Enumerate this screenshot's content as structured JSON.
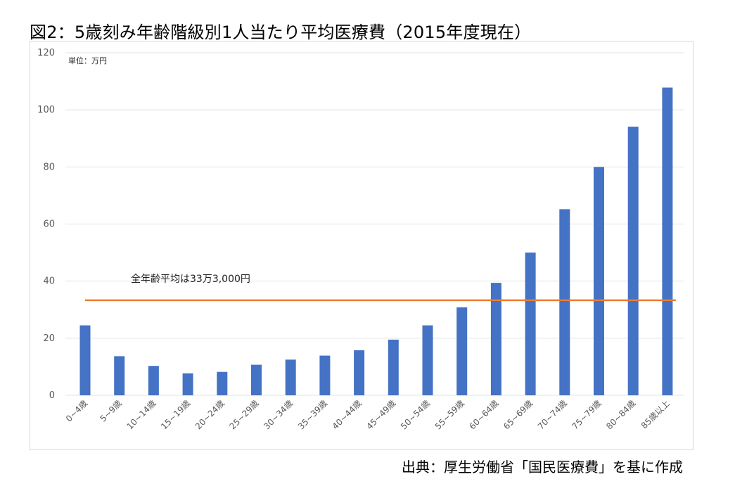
{
  "title": "図2：5歳刻み年齢階級別1人当たり平均医療費（2015年度現在）",
  "source": "出典：厚生労働省「国民医療費」を基に作成",
  "colors": {
    "bar": "#4472c4",
    "average_line": "#ed7d31",
    "grid": "#e3e3e3"
  },
  "chart_data": {
    "type": "bar",
    "unit_label": "単位：万円",
    "categories": [
      "0~4歳",
      "5~9歳",
      "10~14歳",
      "15~19歳",
      "20~24歳",
      "25~29歳",
      "30~34歳",
      "35~39歳",
      "40~44歳",
      "45~49歳",
      "50~54歳",
      "55~59歳",
      "60~64歳",
      "65~69歳",
      "70~74歳",
      "75~79歳",
      "80~84歳",
      "85歳以上"
    ],
    "series": [
      {
        "values": [
          24.5,
          13.7,
          10.3,
          7.7,
          8.2,
          10.7,
          12.5,
          13.9,
          15.8,
          19.5,
          24.5,
          30.8,
          39.4,
          50.0,
          65.2,
          80.0,
          94.1,
          107.8
        ]
      }
    ],
    "average": {
      "value": 33.3,
      "label": "全年齢平均は33万3,000円"
    },
    "ylim": [
      0,
      120
    ],
    "yticks": [
      0,
      20,
      40,
      60,
      80,
      100,
      120
    ],
    "grid": true
  }
}
